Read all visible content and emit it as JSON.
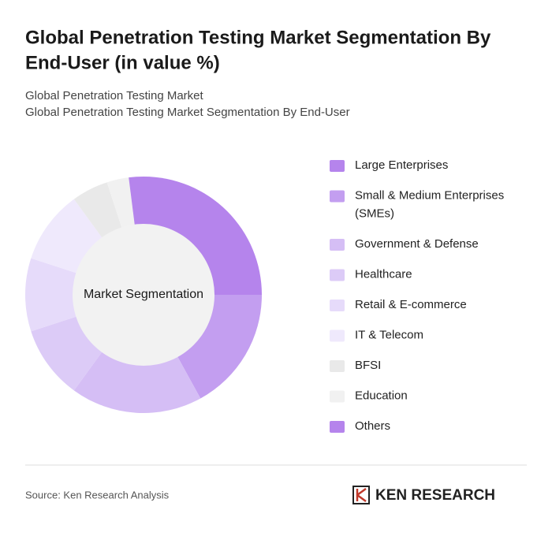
{
  "chart_data": {
    "type": "donut",
    "title": [
      "Global Penetration Testing Market Segmentation By",
      "End-User (in value %)"
    ],
    "subtitle": [
      "Global Penetration Testing Market",
      "Global Penetration Testing Market Segmentation By End-User"
    ],
    "center_label": "Market Segmentation",
    "categories": [
      [
        "Large Enterprises"
      ],
      [
        "Small & Medium Enterprises",
        "(SMEs)"
      ],
      [
        "Government & Defense"
      ],
      [
        "Healthcare"
      ],
      [
        "Retail & E-commerce"
      ],
      [
        "IT & Telecom"
      ],
      [
        "BFSI"
      ],
      [
        "Education"
      ],
      [
        "Others"
      ]
    ],
    "values": [
      25,
      17,
      18,
      10,
      10,
      10,
      5,
      3,
      2
    ],
    "colors": [
      "#b584ec",
      "#c39ef0",
      "#d5bef5",
      "#dccbf7",
      "#e6dbfa",
      "#efe9fc",
      "#e9e9e9",
      "#f1f1f1",
      "#b584ec"
    ],
    "source": "Source: Ken Research Analysis",
    "logo": "KEN RESEARCH"
  }
}
